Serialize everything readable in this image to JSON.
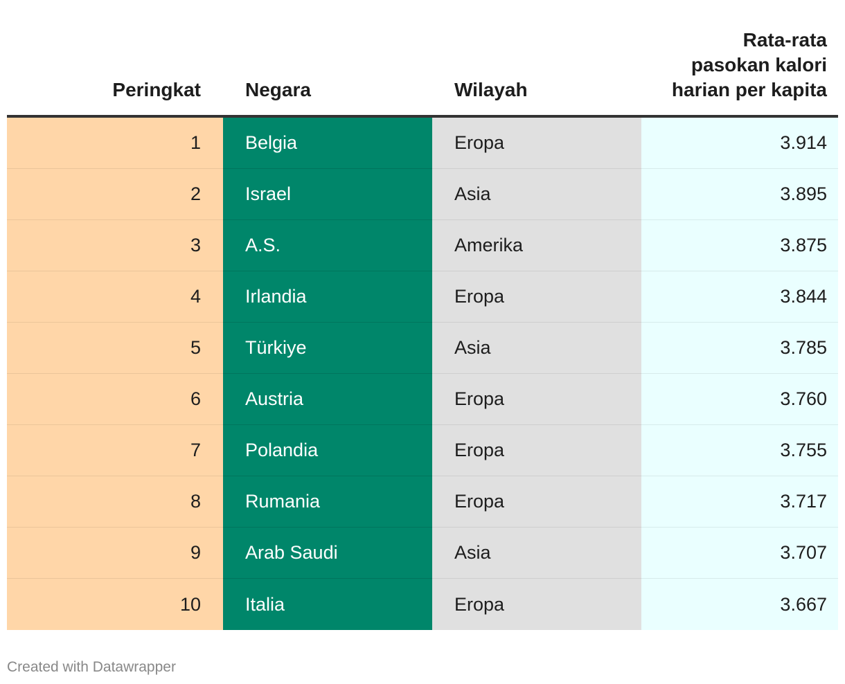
{
  "chart_data": {
    "type": "table",
    "columns": [
      "Peringkat",
      "Negara",
      "Wilayah",
      "Rata-rata pasokan kalori harian per kapita"
    ],
    "rows": [
      {
        "rank": "1",
        "country": "Belgia",
        "region": "Eropa",
        "kcal": "3.914"
      },
      {
        "rank": "2",
        "country": "Israel",
        "region": "Asia",
        "kcal": "3.895"
      },
      {
        "rank": "3",
        "country": "A.S.",
        "region": "Amerika",
        "kcal": "3.875"
      },
      {
        "rank": "4",
        "country": "Irlandia",
        "region": "Eropa",
        "kcal": "3.844"
      },
      {
        "rank": "5",
        "country": "Türkiye",
        "region": "Asia",
        "kcal": "3.785"
      },
      {
        "rank": "6",
        "country": "Austria",
        "region": "Eropa",
        "kcal": "3.760"
      },
      {
        "rank": "7",
        "country": "Polandia",
        "region": "Eropa",
        "kcal": "3.755"
      },
      {
        "rank": "8",
        "country": "Rumania",
        "region": "Eropa",
        "kcal": "3.717"
      },
      {
        "rank": "9",
        "country": "Arab Saudi",
        "region": "Asia",
        "kcal": "3.707"
      },
      {
        "rank": "10",
        "country": "Italia",
        "region": "Eropa",
        "kcal": "3.667"
      }
    ],
    "column_colors": {
      "rank": "#ffd6a8",
      "country": "#00866a",
      "region": "#e0e0e0",
      "kcal": "#eaffff"
    }
  },
  "header": {
    "rank": "Peringkat",
    "country": "Negara",
    "region": "Wilayah",
    "kcal_line1": "Rata-rata",
    "kcal_line2": "pasokan kalori",
    "kcal_line3": "harian per kapita"
  },
  "footer": {
    "credit": "Created with Datawrapper"
  }
}
